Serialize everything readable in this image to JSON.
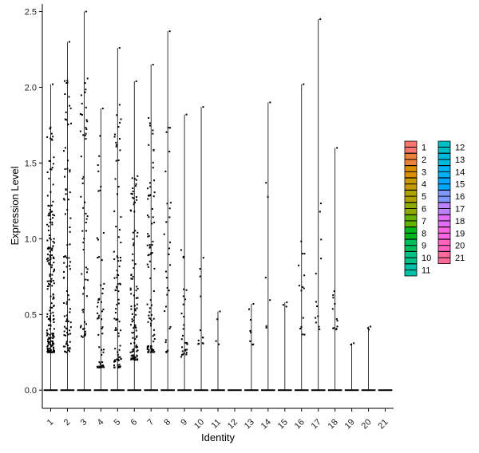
{
  "chart_data": {
    "type": "violin-scatter",
    "title": "",
    "xlabel": "Identity",
    "ylabel": "Expression Level",
    "ylim": [
      -0.12,
      2.55
    ],
    "yticks": [
      0.0,
      0.5,
      1.0,
      1.5,
      2.0,
      2.5
    ],
    "ytick_labels": [
      "0.0",
      "0.5",
      "1.0",
      "1.5",
      "2.0",
      "2.5"
    ],
    "grid": false,
    "legend_placement": "right",
    "categories": [
      "1",
      "2",
      "3",
      "4",
      "5",
      "6",
      "7",
      "8",
      "9",
      "10",
      "11",
      "12",
      "13",
      "14",
      "15",
      "16",
      "17",
      "18",
      "19",
      "20",
      "21"
    ],
    "colors": [
      "#F8766D",
      "#EC8239",
      "#DB8E00",
      "#C79800",
      "#AEA200",
      "#8FAA00",
      "#64B200",
      "#00B81B",
      "#00BD5C",
      "#00C085",
      "#00C1A7",
      "#00BFC4",
      "#00BADE",
      "#00B2F3",
      "#00A6FF",
      "#7F96FF",
      "#BC81FF",
      "#E26EF7",
      "#F863DF",
      "#FF62BF",
      "#FF6A9A"
    ],
    "max_values": [
      2.02,
      2.3,
      2.5,
      1.86,
      2.26,
      2.04,
      2.15,
      2.37,
      1.82,
      1.87,
      0.52,
      0.0,
      0.57,
      1.9,
      0.58,
      2.02,
      2.45,
      1.6,
      0.31,
      0.42,
      0.0
    ],
    "point_counts": [
      200,
      90,
      60,
      60,
      90,
      110,
      90,
      30,
      30,
      12,
      3,
      0,
      7,
      6,
      2,
      14,
      12,
      12,
      1,
      2,
      0
    ],
    "point_spread": [
      0.22,
      0.22,
      0.22,
      0.22,
      0.22,
      0.22,
      0.22,
      0.22,
      0.2,
      0.18,
      0.15,
      0.0,
      0.15,
      0.15,
      0.1,
      0.18,
      0.18,
      0.15,
      0.05,
      0.1,
      0.0
    ],
    "point_range": [
      [
        0.25,
        1.75
      ],
      [
        0.25,
        2.2
      ],
      [
        0.35,
        2.1
      ],
      [
        0.15,
        1.85
      ],
      [
        0.15,
        1.9
      ],
      [
        0.2,
        1.5
      ],
      [
        0.25,
        1.8
      ],
      [
        0.25,
        1.75
      ],
      [
        0.22,
        0.95
      ],
      [
        0.3,
        0.9
      ],
      [
        0.3,
        0.52
      ],
      [
        0.0,
        0.0
      ],
      [
        0.3,
        0.6
      ],
      [
        0.4,
        1.5
      ],
      [
        0.55,
        0.58
      ],
      [
        0.35,
        1.2
      ],
      [
        0.4,
        1.3
      ],
      [
        0.4,
        0.75
      ],
      [
        0.3,
        0.31
      ],
      [
        0.4,
        0.42
      ],
      [
        0.0,
        0.0
      ]
    ]
  }
}
